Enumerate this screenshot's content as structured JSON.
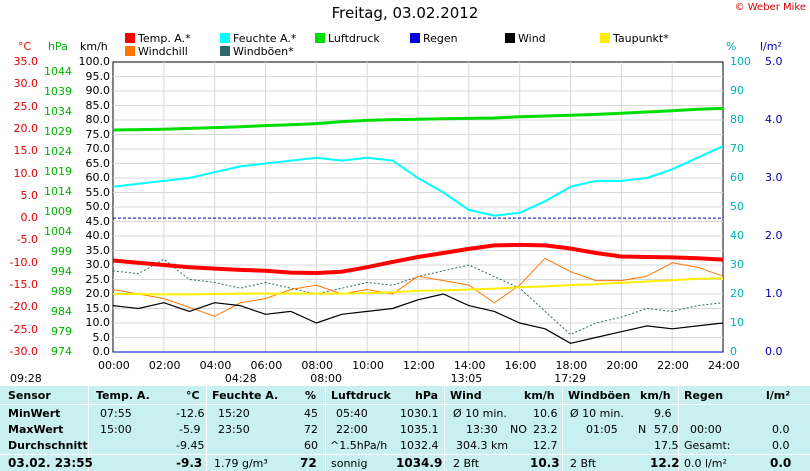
{
  "title": "Freitag, 03.02.2012",
  "copyright": "© Weber Mike",
  "legend": [
    {
      "label": "Temp. A.*",
      "color": "#ff0000"
    },
    {
      "label": "Feuchte A.*",
      "color": "#00ffff"
    },
    {
      "label": "Luftdruck",
      "color": "#00dd00"
    },
    {
      "label": "Regen",
      "color": "#0000dd"
    },
    {
      "label": "Wind",
      "color": "#000000"
    },
    {
      "label": "Taupunkt*",
      "color": "#ffee00"
    },
    {
      "label": "Windchill",
      "color": "#ff7700"
    },
    {
      "label": "Windböen*",
      "color": "#336666"
    }
  ],
  "units": {
    "temp": "°C",
    "hpa": "hPa",
    "kmh": "km/h",
    "pct": "%",
    "rain": "l/m²"
  },
  "axes": {
    "temp": [
      "35.0",
      "30.0",
      "25.0",
      "20.0",
      "15.0",
      "10.0",
      "5.0",
      "0.0",
      "-5.0",
      "-10.0",
      "-15.0",
      "-20.0",
      "-25.0",
      "-30.0"
    ],
    "hpa": [
      "1044",
      "1039",
      "1034",
      "1029",
      "1024",
      "1019",
      "1014",
      "1009",
      "1004",
      "999",
      "994",
      "989",
      "984",
      "979",
      "974"
    ],
    "kmh": [
      "100.0",
      "95.0",
      "90.0",
      "85.0",
      "80.0",
      "75.0",
      "70.0",
      "65.0",
      "60.0",
      "55.0",
      "50.0",
      "45.0",
      "40.0",
      "35.0",
      "30.0",
      "25.0",
      "20.0",
      "15.0",
      "10.0",
      "5.0",
      "0.0"
    ],
    "pct": [
      "100",
      "90",
      "80",
      "70",
      "60",
      "50",
      "40",
      "30",
      "20",
      "10",
      "0"
    ],
    "rain": [
      "5.0",
      "4.0",
      "3.0",
      "2.0",
      "1.0",
      "0.0"
    ],
    "time": [
      "00:00",
      "02:00",
      "04:00",
      "06:00",
      "08:00",
      "10:00",
      "12:00",
      "14:00",
      "16:00",
      "18:00",
      "20:00",
      "22:00",
      "24:00"
    ]
  },
  "sun_marks": [
    {
      "label": "09:28",
      "pos": 0.0
    },
    {
      "label": "04:28",
      "pos": 0.19
    },
    {
      "label": "08:00",
      "pos": 0.33
    },
    {
      "label": "13:05",
      "pos": 0.56
    },
    {
      "label": "17:29",
      "pos": 0.73
    }
  ],
  "chart_data": {
    "type": "line",
    "x": [
      "00:00",
      "01:00",
      "02:00",
      "03:00",
      "04:00",
      "05:00",
      "06:00",
      "07:00",
      "08:00",
      "09:00",
      "10:00",
      "11:00",
      "12:00",
      "13:00",
      "14:00",
      "15:00",
      "16:00",
      "17:00",
      "18:00",
      "19:00",
      "20:00",
      "21:00",
      "22:00",
      "23:00",
      "24:00"
    ],
    "series": [
      {
        "name": "Temp. A.*",
        "axis": "temp",
        "values": [
          -9.5,
          -10.0,
          -10.5,
          -11.0,
          -11.3,
          -11.6,
          -11.8,
          -12.2,
          -12.3,
          -12.0,
          -11.0,
          -9.8,
          -8.7,
          -7.8,
          -6.9,
          -6.1,
          -6.0,
          -6.1,
          -6.8,
          -7.8,
          -8.6,
          -8.7,
          -8.8,
          -9.0,
          -9.3
        ]
      },
      {
        "name": "Feuchte A.*",
        "axis": "pct",
        "values": [
          57,
          58,
          59,
          60,
          62,
          64,
          65,
          66,
          67,
          66,
          67,
          66,
          60,
          55,
          49,
          47,
          48,
          52,
          57,
          59,
          59,
          60,
          63,
          67,
          71
        ]
      },
      {
        "name": "Luftdruck",
        "axis": "hpa",
        "values": [
          1029.5,
          1029.6,
          1029.7,
          1029.9,
          1030.1,
          1030.3,
          1030.6,
          1030.8,
          1031.1,
          1031.6,
          1031.9,
          1032.1,
          1032.2,
          1032.3,
          1032.4,
          1032.5,
          1032.8,
          1033.0,
          1033.2,
          1033.4,
          1033.7,
          1034.0,
          1034.3,
          1034.7,
          1034.9
        ]
      },
      {
        "name": "Regen",
        "axis": "rain",
        "values": [
          0,
          0,
          0,
          0,
          0,
          0,
          0,
          0,
          0,
          0,
          0,
          0,
          0,
          0,
          0,
          0,
          0,
          0,
          0,
          0,
          0,
          0,
          0,
          0,
          0
        ]
      },
      {
        "name": "Wind",
        "axis": "kmh",
        "values": [
          16,
          15,
          17,
          14,
          17,
          16,
          13,
          14,
          10,
          13,
          14,
          15,
          18,
          20,
          16,
          14,
          10,
          8,
          3,
          5,
          7,
          9,
          8,
          9,
          10
        ]
      },
      {
        "name": "Taupunkt*",
        "axis": "temp",
        "values": [
          -17.0,
          -17.0,
          -17.1,
          -17.1,
          -17.0,
          -16.9,
          -16.9,
          -16.9,
          -16.9,
          -16.9,
          -16.8,
          -16.6,
          -16.3,
          -16.2,
          -16.0,
          -15.8,
          -15.5,
          -15.3,
          -15.0,
          -14.8,
          -14.5,
          -14.2,
          -13.9,
          -13.6,
          -13.5
        ]
      },
      {
        "name": "Windchill",
        "axis": "temp",
        "values": [
          -16,
          -17,
          -18,
          -20,
          -22,
          -19,
          -18,
          -16,
          -15,
          -17,
          -16,
          -17,
          -13,
          -14,
          -15,
          -19,
          -15,
          -9,
          -12,
          -14,
          -14,
          -13,
          -10,
          -11,
          -13
        ]
      },
      {
        "name": "Windböen*",
        "axis": "kmh",
        "values": [
          28,
          27,
          32,
          25,
          24,
          22,
          24,
          22,
          20,
          22,
          24,
          23,
          26,
          28,
          30,
          26,
          22,
          14,
          6,
          10,
          12,
          15,
          14,
          16,
          17
        ]
      }
    ],
    "reference_line": {
      "axis": "temp",
      "value": 0.0
    }
  },
  "table": {
    "headers": {
      "sensor": "Sensor",
      "temp": "Temp. A.",
      "temp_u": "°C",
      "hum": "Feuchte A.",
      "hum_u": "%",
      "press": "Luftdruck",
      "press_u": "hPa",
      "wind": "Wind",
      "wind_u": "km/h",
      "gust": "Windböen",
      "gust_u": "km/h",
      "rain": "Regen",
      "rain_u": "l/m²"
    },
    "rows": {
      "min": {
        "label": "MinWert",
        "temp_t": "07:55",
        "temp_v": "-12.6",
        "hum_t": "15:20",
        "hum_v": "45",
        "press_t": "05:40",
        "press_v": "1030.1",
        "wind_t": "Ø 10 min.",
        "wind_v": "10.6",
        "gust_t": "Ø 10 min.",
        "gust_v": "9.6",
        "rain_t": "",
        "rain_v": ""
      },
      "max": {
        "label": "MaxWert",
        "temp_t": "15:00",
        "temp_v": "-5.9",
        "hum_t": "23:50",
        "hum_v": "72",
        "press_t": "22:00",
        "press_v": "1035.1",
        "wind_t": "13:30",
        "wind_d": "NO",
        "wind_v": "23.2",
        "gust_t": "01:05",
        "gust_d": "N",
        "gust_v": "57.0",
        "rain_t": "00:00",
        "rain_v": "0.0"
      },
      "avg": {
        "label": "Durchschnitt",
        "temp_v": "-9.45",
        "hum_v": "60",
        "press_t": "^1.5hPa/h",
        "press_v": "1032.4",
        "wind_t": "304.3 km",
        "wind_v": "12.7",
        "gust_v": "17.5",
        "rain_t": "Gesamt:",
        "rain_v": "0.0"
      },
      "cur": {
        "label": "03.02.  23:55",
        "temp_v": "-9.3",
        "hum_t": "1.79 g/m³",
        "hum_v": "72",
        "press_t": "sonnig",
        "press_v": "1034.9",
        "wind_t": "2 Bft",
        "wind_v": "10.3",
        "gust_t": "2 Bft",
        "gust_v": "12.2",
        "rain_t": "0.0 l/m²",
        "rain_v": "0.0"
      }
    }
  }
}
